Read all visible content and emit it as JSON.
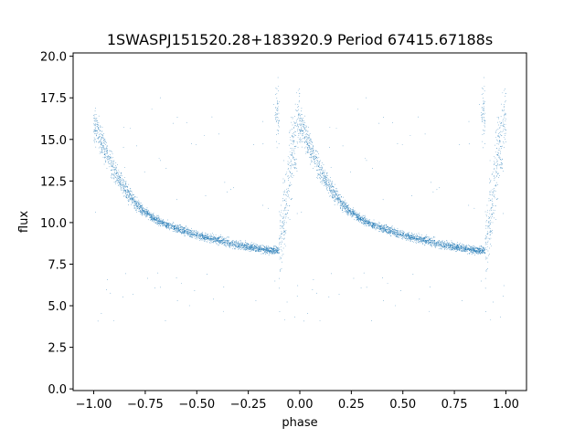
{
  "chart_data": {
    "type": "scatter",
    "title": "1SWASPJ151520.28+183920.9 Period 67415.67188s",
    "xlabel": "phase",
    "ylabel": "flux",
    "xlim": [
      -1.1,
      1.1
    ],
    "ylim": [
      -0.1,
      20.2
    ],
    "xticks": [
      -1.0,
      -0.75,
      -0.5,
      -0.25,
      0.0,
      0.25,
      0.5,
      0.75,
      1.0
    ],
    "xtick_labels": [
      "−1.00",
      "−0.75",
      "−0.50",
      "−0.25",
      "0.00",
      "0.25",
      "0.50",
      "0.75",
      "1.00"
    ],
    "yticks": [
      0.0,
      2.5,
      5.0,
      7.5,
      10.0,
      12.5,
      15.0,
      17.5,
      20.0
    ],
    "ytick_labels": [
      "0.0",
      "2.5",
      "5.0",
      "7.5",
      "10.0",
      "12.5",
      "15.0",
      "17.5",
      "20.0"
    ],
    "grid": false,
    "color": "#1f77b4",
    "marker_size": 0.8,
    "trend": [
      {
        "phase": 0.0,
        "flux": 16.0
      },
      {
        "phase": 0.05,
        "flux": 14.5
      },
      {
        "phase": 0.1,
        "flux": 13.1
      },
      {
        "phase": 0.15,
        "flux": 12.0
      },
      {
        "phase": 0.2,
        "flux": 11.2
      },
      {
        "phase": 0.25,
        "flux": 10.6
      },
      {
        "phase": 0.3,
        "flux": 10.2
      },
      {
        "phase": 0.35,
        "flux": 9.9
      },
      {
        "phase": 0.4,
        "flux": 9.65
      },
      {
        "phase": 0.45,
        "flux": 9.45
      },
      {
        "phase": 0.5,
        "flux": 9.25
      },
      {
        "phase": 0.55,
        "flux": 9.1
      },
      {
        "phase": 0.6,
        "flux": 8.95
      },
      {
        "phase": 0.65,
        "flux": 8.8
      },
      {
        "phase": 0.7,
        "flux": 8.65
      },
      {
        "phase": 0.75,
        "flux": 8.55
      },
      {
        "phase": 0.8,
        "flux": 8.45
      },
      {
        "phase": 0.85,
        "flux": 8.35
      },
      {
        "phase": 0.9,
        "flux": 8.3
      }
    ],
    "rising_branch": [
      {
        "phase": 0.9,
        "flux": 8.5
      },
      {
        "phase": 0.93,
        "flux": 11.0
      },
      {
        "phase": 0.96,
        "flux": 14.0
      },
      {
        "phase": 1.0,
        "flux": 16.5
      }
    ],
    "series": [
      {
        "values_note": "phase-folded light curve, repeated over two cycles"
      }
    ]
  }
}
